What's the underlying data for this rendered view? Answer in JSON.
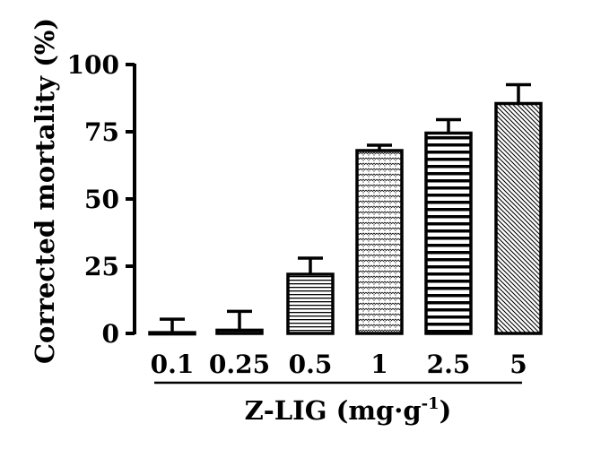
{
  "chart_data": {
    "type": "bar",
    "title": "",
    "xlabel": "Z-LIG (mg·g",
    "xlabel_superscript": "-1",
    "xlabel_suffix": ")",
    "ylabel": "Corrected mortality (%)",
    "ylim": [
      0,
      100
    ],
    "yticks": [
      0,
      25,
      50,
      75,
      100
    ],
    "grid": false,
    "categories": [
      "0.1",
      "0.25",
      "0.5",
      "1",
      "2.5",
      "5"
    ],
    "values": [
      0.3,
      1.2,
      22,
      68,
      74.5,
      85.5
    ],
    "errors": [
      5,
      7,
      6,
      2,
      5,
      7
    ],
    "fill_patterns": [
      "dots",
      "dots",
      "hlines-fine",
      "wave-dots",
      "hlines-bold",
      "diagonal"
    ],
    "colors": {
      "stroke": "#000000",
      "fill": "#ffffff"
    }
  }
}
